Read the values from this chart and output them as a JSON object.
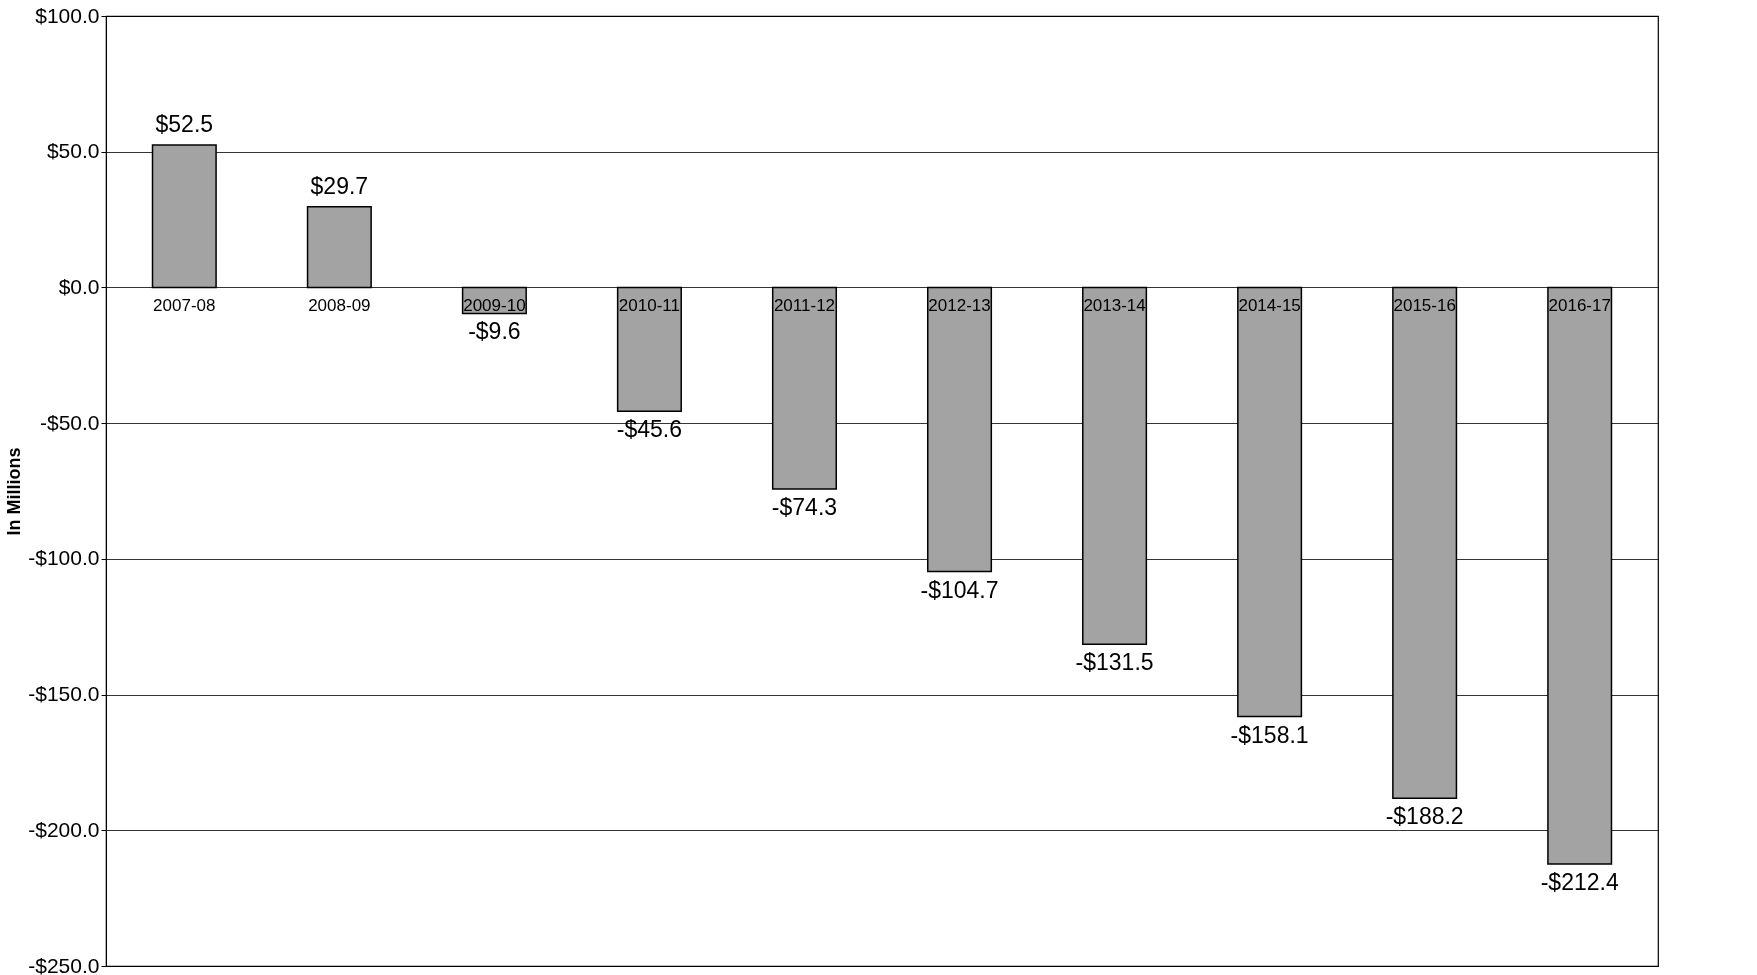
{
  "chart_data": {
    "type": "bar",
    "ylabel": "In Millions",
    "categories": [
      "2007-08",
      "2008-09",
      "2009-10",
      "2010-11",
      "2011-12",
      "2012-13",
      "2013-14",
      "2014-15",
      "2015-16",
      "2016-17"
    ],
    "values": [
      52.5,
      29.7,
      -9.6,
      -45.6,
      -74.3,
      -104.7,
      -131.5,
      -158.1,
      -188.2,
      -212.4
    ],
    "value_labels": [
      "$52.5",
      "$29.7",
      "-$9.6",
      "-$45.6",
      "-$74.3",
      "-$104.7",
      "-$131.5",
      "-$158.1",
      "-$188.2",
      "-$212.4"
    ],
    "color": "#a3a3a3",
    "ylim": [
      -250,
      100
    ],
    "yticks": [
      {
        "value": 100,
        "label": "$100.0"
      },
      {
        "value": 50,
        "label": "$50.0"
      },
      {
        "value": 0,
        "label": "$0.0"
      },
      {
        "value": -50,
        "label": "-$50.0"
      },
      {
        "value": -100,
        "label": "-$100.0"
      },
      {
        "value": -150,
        "label": "-$150.0"
      },
      {
        "value": -200,
        "label": "-$200.0"
      },
      {
        "value": -250,
        "label": "-$250.0"
      }
    ],
    "grid": "y"
  }
}
